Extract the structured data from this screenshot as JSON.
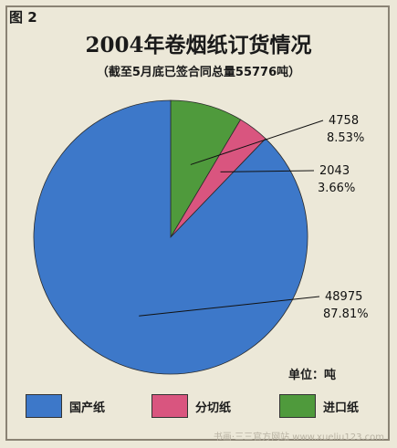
{
  "figure_label": "图 2",
  "unit": "单位：吨",
  "watermark": "书画·三三官方网站 www.xueliu123.com",
  "chart_data": {
    "type": "pie",
    "title": "2004年卷烟纸订货情况",
    "subtitle": "（截至5月底已签合同总量55776吨）",
    "slices": [
      {
        "name": "国产纸",
        "value": 48975,
        "percent": "87.81%",
        "color": "#3d78c9"
      },
      {
        "name": "分切纸",
        "value": 2043,
        "percent": "3.66%",
        "color": "#d9557f"
      },
      {
        "name": "进口纸",
        "value": 4758,
        "percent": "8.53%",
        "color": "#4f9a3c"
      }
    ],
    "legend_position": "bottom"
  }
}
